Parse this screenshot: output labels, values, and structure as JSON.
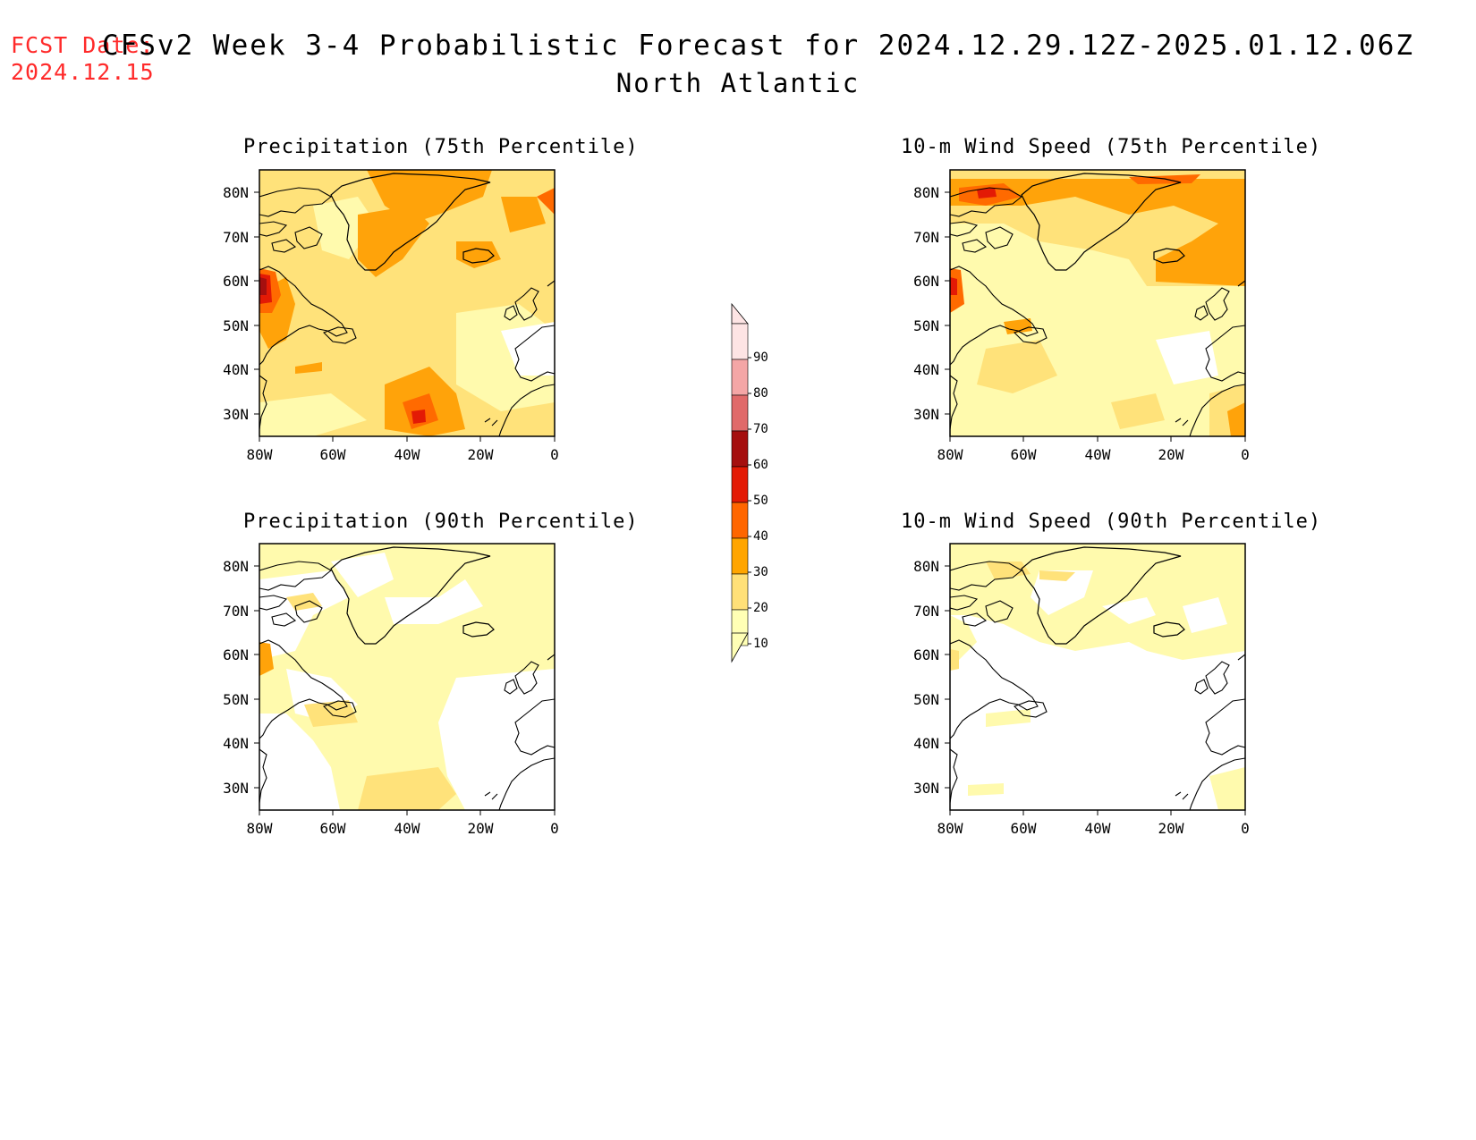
{
  "header": {
    "fcst_label": "FCST Date:",
    "fcst_date": "2024.12.15",
    "title": "CFSv2 Week 3-4 Probabilistic Forecast for 2024.12.29.12Z-2025.01.12.06Z",
    "subtitle": "North Atlantic"
  },
  "panels": [
    {
      "title": "Precipitation (75th Percentile)"
    },
    {
      "title": "10-m Wind Speed (75th Percentile)"
    },
    {
      "title": "Precipitation (90th Percentile)"
    },
    {
      "title": "10-m Wind Speed (90th Percentile)"
    }
  ],
  "axes": {
    "lat_labels": [
      "80N",
      "70N",
      "60N",
      "50N",
      "40N",
      "30N"
    ],
    "lon_labels": [
      "80W",
      "60W",
      "40W",
      "20W",
      "0"
    ]
  },
  "colorbar": {
    "labels": [
      "90",
      "80",
      "70",
      "60",
      "50",
      "40",
      "30",
      "20",
      "10"
    ],
    "colors": [
      "#fde4e4",
      "#f4a6a6",
      "#e06a6a",
      "#a50f0f",
      "#e31a05",
      "#ff6600",
      "#ffa500",
      "#ffe078",
      "#ffffb5"
    ]
  },
  "palette": {
    "c10": "#fffaad",
    "c20": "#ffe27a",
    "c30": "#ffa30a",
    "c40": "#ff6a00",
    "c50": "#e31a05",
    "c60": "#a50f0f",
    "c70": "#e06a6a",
    "coast": "#000000"
  }
}
